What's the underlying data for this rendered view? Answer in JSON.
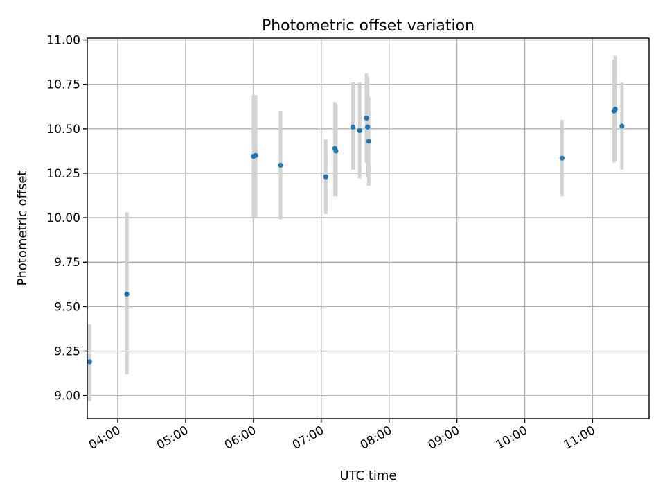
{
  "chart_data": {
    "type": "scatter",
    "title": "Photometric offset variation",
    "xlabel": "UTC time",
    "ylabel": "Photometric offset",
    "xlim": [
      "03:33",
      "11:50"
    ],
    "ylim": [
      8.87,
      11.01
    ],
    "grid": true,
    "x_ticks": [
      "04:00",
      "05:00",
      "06:00",
      "07:00",
      "08:00",
      "09:00",
      "10:00",
      "11:00"
    ],
    "y_ticks": [
      "9.00",
      "9.25",
      "9.50",
      "9.75",
      "10.00",
      "10.25",
      "10.50",
      "10.75",
      "11.00"
    ],
    "colors": {
      "point": "#1f77b4",
      "errorbar": "#d3d3d3",
      "grid": "#b0b0b0"
    },
    "points": [
      {
        "x": "03:35",
        "y": 9.19,
        "low": 8.97,
        "high": 9.4
      },
      {
        "x": "04:08",
        "y": 9.57,
        "low": 9.12,
        "high": 10.03
      },
      {
        "x": "06:00",
        "y": 10.345,
        "low": 10.0,
        "high": 10.69
      },
      {
        "x": "06:02",
        "y": 10.35,
        "low": 10.0,
        "high": 10.69
      },
      {
        "x": "06:24",
        "y": 10.295,
        "low": 9.99,
        "high": 10.6
      },
      {
        "x": "07:04",
        "y": 10.23,
        "low": 10.02,
        "high": 10.44
      },
      {
        "x": "07:12",
        "y": 10.39,
        "low": 10.12,
        "high": 10.65
      },
      {
        "x": "07:13",
        "y": 10.375,
        "low": 10.12,
        "high": 10.64
      },
      {
        "x": "07:28",
        "y": 10.51,
        "low": 10.27,
        "high": 10.76
      },
      {
        "x": "07:34",
        "y": 10.49,
        "low": 10.22,
        "high": 10.76
      },
      {
        "x": "07:40",
        "y": 10.56,
        "low": 10.31,
        "high": 10.81
      },
      {
        "x": "07:41",
        "y": 10.51,
        "low": 10.23,
        "high": 10.79
      },
      {
        "x": "07:42",
        "y": 10.43,
        "low": 10.18,
        "high": 10.68
      },
      {
        "x": "10:33",
        "y": 10.335,
        "low": 10.12,
        "high": 10.55
      },
      {
        "x": "11:19",
        "y": 10.6,
        "low": 10.31,
        "high": 10.89
      },
      {
        "x": "11:20",
        "y": 10.61,
        "low": 10.32,
        "high": 10.91
      },
      {
        "x": "11:26",
        "y": 10.515,
        "low": 10.27,
        "high": 10.76
      }
    ]
  }
}
